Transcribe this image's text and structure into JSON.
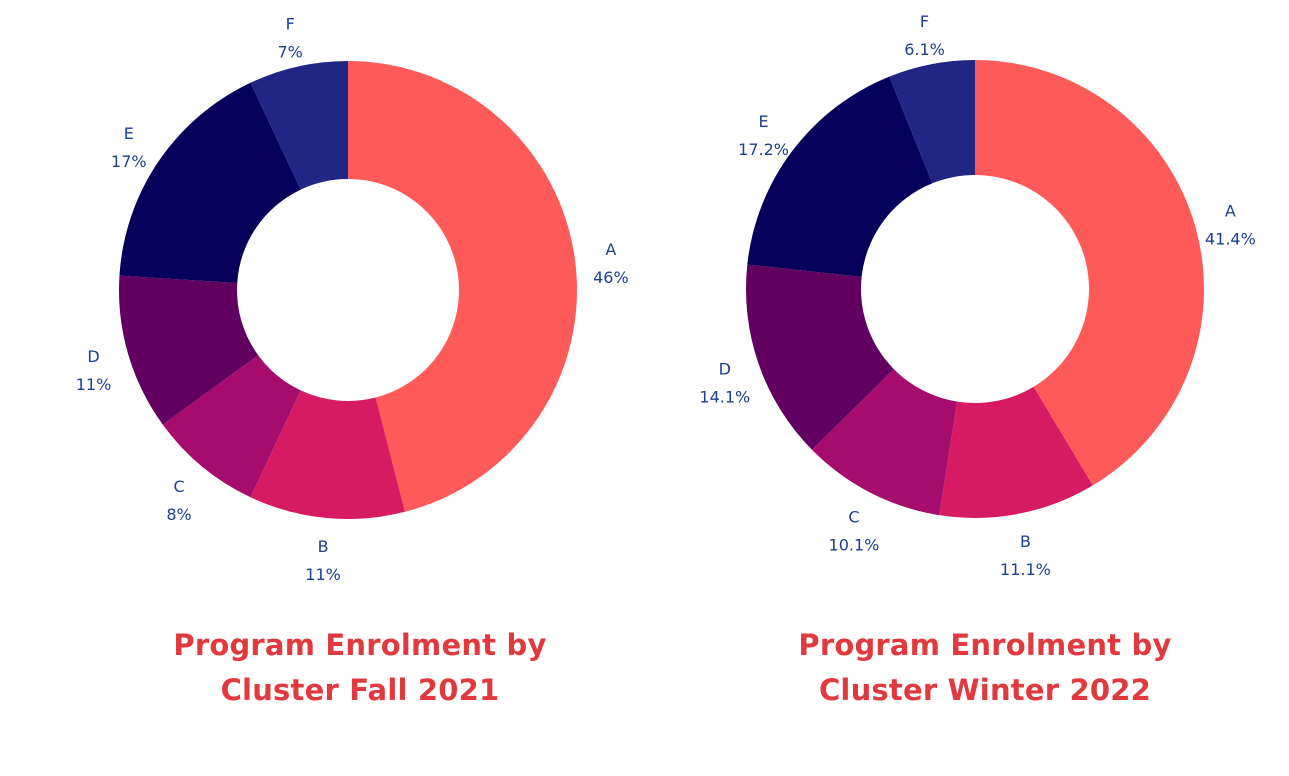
{
  "chart_data": [
    {
      "type": "pie",
      "variant": "donut",
      "title_lines": [
        "Program Enrolment by",
        "Cluster Fall 2021"
      ],
      "categories": [
        "A",
        "B",
        "C",
        "D",
        "E",
        "F"
      ],
      "values": [
        46,
        11,
        8,
        11,
        17,
        7
      ],
      "value_labels": [
        "46%",
        "11%",
        "8%",
        "11%",
        "17%",
        "7%"
      ],
      "colors": [
        "#ff5a5a",
        "#d71b62",
        "#a50c6d",
        "#62005f",
        "#05005a",
        "#212685"
      ]
    },
    {
      "type": "pie",
      "variant": "donut",
      "title_lines": [
        "Program Enrolment by",
        "Cluster Winter 2022"
      ],
      "categories": [
        "A",
        "B",
        "C",
        "D",
        "E",
        "F"
      ],
      "values": [
        41.4,
        11.1,
        10.1,
        14.1,
        17.2,
        6.1
      ],
      "value_labels": [
        "41.4%",
        "11.1%",
        "10.1%",
        "14.1%",
        "17.2%",
        "6.1%"
      ],
      "colors": [
        "#ff5a5a",
        "#d71b62",
        "#a50c6d",
        "#62005f",
        "#05005a",
        "#212685"
      ]
    }
  ]
}
